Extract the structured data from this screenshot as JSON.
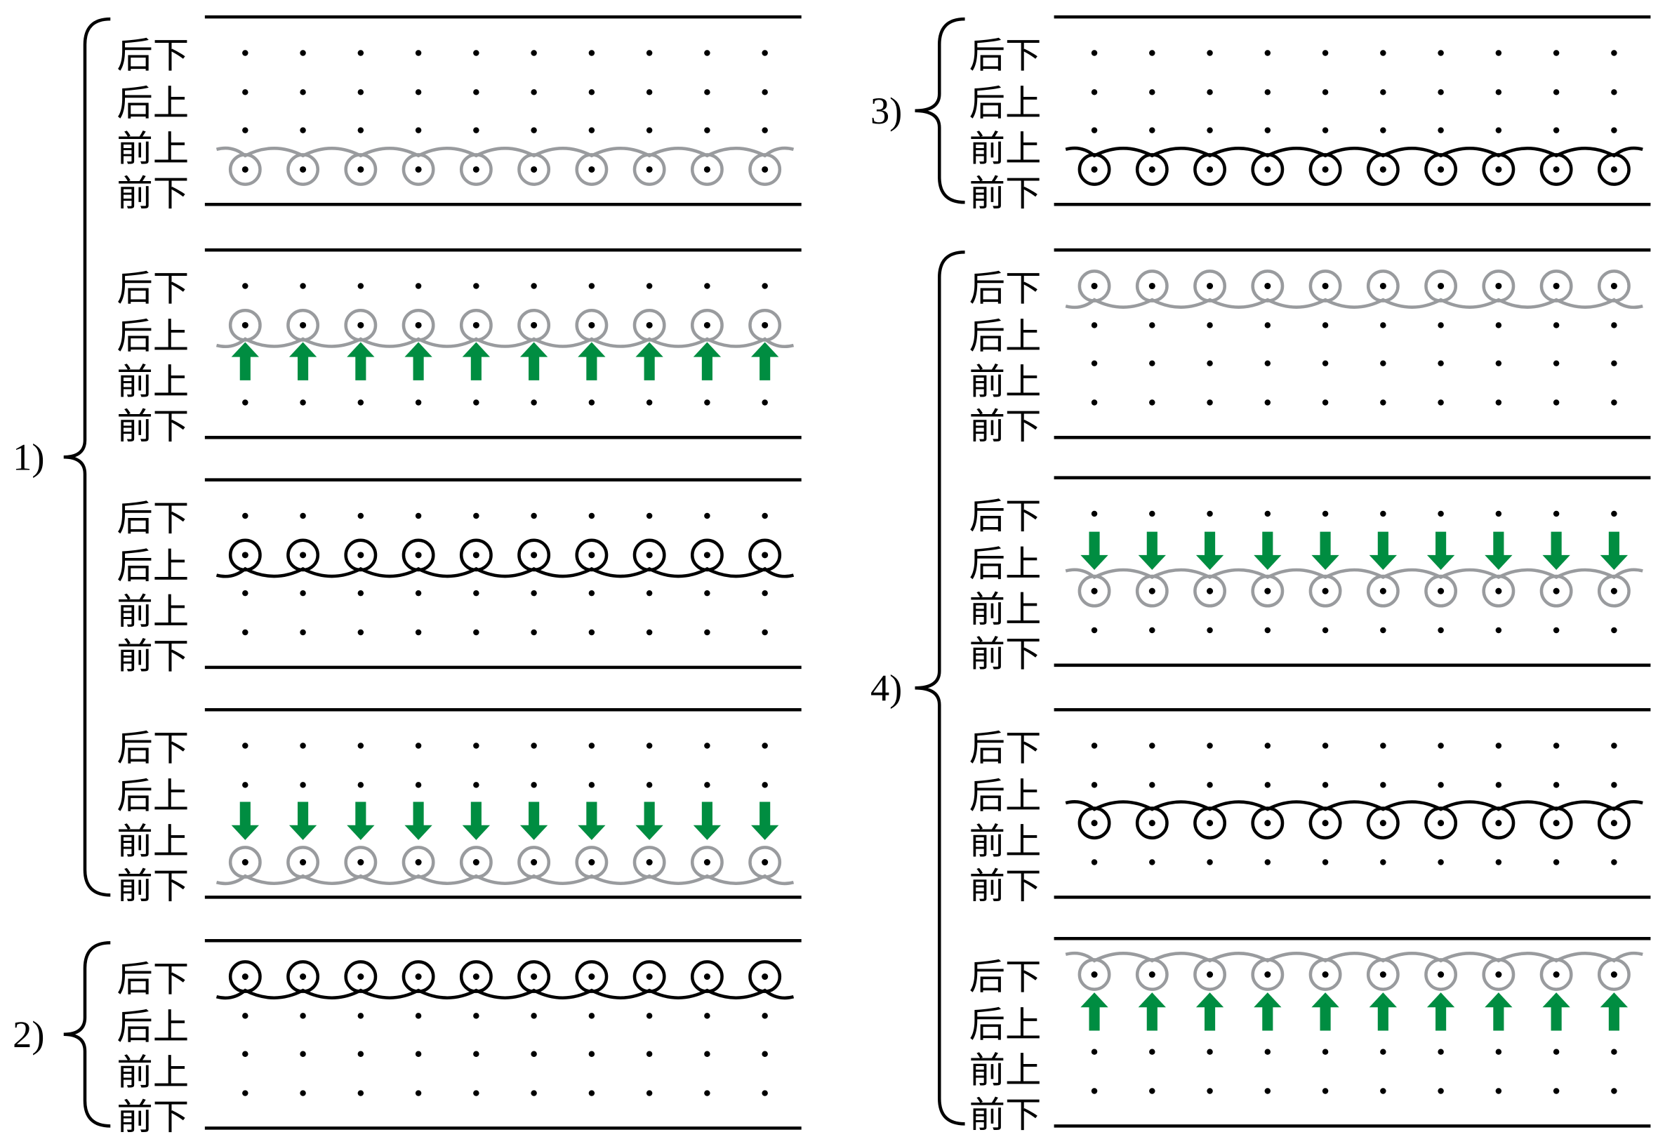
{
  "colors": {
    "line": "#000000",
    "gray_coil": "#999b9e",
    "black_coil": "#000000",
    "arrow": "#008d41",
    "dot": "#000000"
  },
  "icons": {
    "coil": "wire-loop-with-dot-icon",
    "arrow_up": "arrow-up-icon",
    "arrow_down": "arrow-down-icon",
    "dot": "dot-icon"
  },
  "columns_per_row": 10,
  "groups": [
    {
      "label": "1)",
      "column": "left",
      "panels": [
        {
          "rows": [
            "后下",
            "后上",
            "前上",
            "前下"
          ],
          "coil": {
            "row": 3,
            "color": "gray",
            "wave": "above"
          },
          "arrows": null
        },
        {
          "rows": [
            "后下",
            "后上",
            "前上",
            "前下"
          ],
          "coil": {
            "row": 1,
            "color": "gray",
            "wave": "below"
          },
          "arrows": {
            "row": 2,
            "direction": "up"
          }
        },
        {
          "rows": [
            "后下",
            "后上",
            "前上",
            "前下"
          ],
          "coil": {
            "row": 1,
            "color": "black",
            "wave": "below"
          },
          "arrows": null
        },
        {
          "rows": [
            "后下",
            "后上",
            "前上",
            "前下"
          ],
          "coil": {
            "row": 3,
            "color": "gray",
            "wave": "below"
          },
          "arrows": {
            "row": 2,
            "direction": "down"
          }
        }
      ]
    },
    {
      "label": "2)",
      "column": "left",
      "panels": [
        {
          "rows": [
            "后下",
            "后上",
            "前上",
            "前下"
          ],
          "coil": {
            "row": 0,
            "color": "black",
            "wave": "below"
          },
          "arrows": null
        }
      ]
    },
    {
      "label": "3)",
      "column": "right",
      "panels": [
        {
          "rows": [
            "后下",
            "后上",
            "前上",
            "前下"
          ],
          "coil": {
            "row": 3,
            "color": "black",
            "wave": "above"
          },
          "arrows": null
        }
      ]
    },
    {
      "label": "4)",
      "column": "right",
      "panels": [
        {
          "rows": [
            "后下",
            "后上",
            "前上",
            "前下"
          ],
          "coil": {
            "row": 0,
            "color": "gray",
            "wave": "below"
          },
          "arrows": null
        },
        {
          "rows": [
            "后下",
            "后上",
            "前上",
            "前下"
          ],
          "coil": {
            "row": 2,
            "color": "gray",
            "wave": "above"
          },
          "arrows": {
            "row": 1,
            "direction": "down"
          }
        },
        {
          "rows": [
            "后下",
            "后上",
            "前上",
            "前下"
          ],
          "coil": {
            "row": 2,
            "color": "black",
            "wave": "above"
          },
          "arrows": null
        },
        {
          "rows": [
            "后下",
            "后上",
            "前上",
            "前下"
          ],
          "coil": {
            "row": 0,
            "color": "gray",
            "wave": "above"
          },
          "arrows": {
            "row": 1,
            "direction": "up"
          }
        }
      ]
    }
  ]
}
